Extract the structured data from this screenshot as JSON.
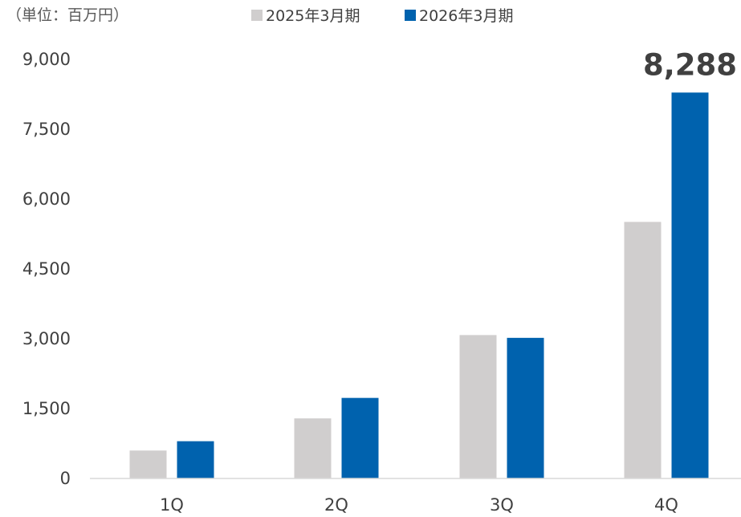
{
  "chart_data": {
    "type": "bar",
    "unit_label": "（単位：百万円）",
    "categories": [
      "1Q",
      "2Q",
      "3Q",
      "4Q"
    ],
    "series": [
      {
        "name": "2025年3月期",
        "color": "#d0cece",
        "values": [
          600,
          1290,
          3080,
          5510
        ]
      },
      {
        "name": "2026年3月期",
        "color": "#0062ae",
        "values": [
          800,
          1730,
          3020,
          8288
        ]
      }
    ],
    "ylim": [
      0,
      9000
    ],
    "yticks": [
      0,
      1500,
      3000,
      4500,
      6000,
      7500,
      9000
    ],
    "ytick_labels": [
      "0",
      "1,500",
      "3,000",
      "4,500",
      "6,000",
      "7,500",
      "9,000"
    ],
    "data_labels": [
      {
        "series": 1,
        "category": 3,
        "text": "8,288"
      }
    ],
    "grid": false,
    "legend_position": "top-center",
    "axis_color": "#d9d9d9"
  }
}
